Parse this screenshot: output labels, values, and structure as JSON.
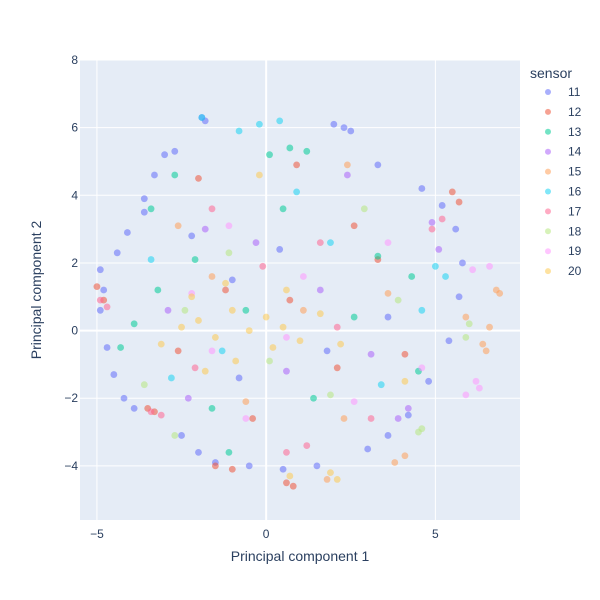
{
  "chart_data": {
    "type": "scatter",
    "xlabel": "Principal component 1",
    "ylabel": "Principal component 2",
    "xlim": [
      -5.5,
      7.5
    ],
    "ylim": [
      -5.6,
      8
    ],
    "x_ticks": [
      -5,
      0,
      5
    ],
    "y_ticks": [
      -4,
      -2,
      0,
      2,
      4,
      6,
      8
    ],
    "x_tick_labels": [
      "−5",
      "0",
      "5"
    ],
    "y_tick_labels": [
      "−4",
      "−2",
      "0",
      "2",
      "4",
      "6",
      "8"
    ],
    "grid": true,
    "legend": {
      "title": "sensor",
      "position": "right"
    },
    "colors": {
      "plot_bg": "#e5ecf6",
      "grid": "#ffffff",
      "text": "#2a3f5f"
    },
    "series": [
      {
        "name": "11",
        "color": "#636efa",
        "points": [
          [
            -4.9,
            1.8
          ],
          [
            -4.8,
            1.2
          ],
          [
            -4.9,
            0.6
          ],
          [
            -4.7,
            -0.5
          ],
          [
            -4.5,
            -1.3
          ],
          [
            -4.2,
            -2.0
          ],
          [
            -3.9,
            -2.3
          ],
          [
            -3.6,
            3.9
          ],
          [
            -3.3,
            4.6
          ],
          [
            -3.0,
            5.2
          ],
          [
            -2.7,
            5.3
          ],
          [
            -1.9,
            6.3
          ],
          [
            -1.8,
            6.2
          ],
          [
            2.0,
            6.1
          ],
          [
            2.3,
            6.0
          ],
          [
            2.5,
            5.9
          ],
          [
            -2.5,
            -3.1
          ],
          [
            -2.0,
            -3.6
          ],
          [
            -1.5,
            -3.9
          ],
          [
            -0.5,
            -4.0
          ],
          [
            0.5,
            -4.1
          ],
          [
            1.5,
            -4.0
          ],
          [
            3.0,
            -3.5
          ],
          [
            3.6,
            -3.1
          ],
          [
            4.2,
            -2.5
          ],
          [
            4.8,
            -1.5
          ],
          [
            5.4,
            -0.3
          ],
          [
            5.7,
            1.0
          ],
          [
            5.8,
            2.0
          ],
          [
            5.6,
            3.0
          ],
          [
            5.2,
            3.7
          ],
          [
            4.6,
            4.2
          ],
          [
            3.3,
            4.9
          ],
          [
            -3.6,
            3.5
          ],
          [
            -4.1,
            2.9
          ],
          [
            -4.4,
            2.3
          ],
          [
            -1.0,
            1.5
          ],
          [
            1.8,
            -0.6
          ],
          [
            -2.2,
            2.8
          ],
          [
            3.6,
            0.4
          ],
          [
            0.4,
            2.4
          ],
          [
            -0.8,
            -1.4
          ]
        ]
      },
      {
        "name": "12",
        "color": "#ef553b",
        "points": [
          [
            -5.0,
            1.3
          ],
          [
            -4.8,
            0.9
          ],
          [
            -3.5,
            -2.3
          ],
          [
            -3.3,
            -2.4
          ],
          [
            -1.5,
            -4.0
          ],
          [
            -1.0,
            -4.1
          ],
          [
            0.8,
            -4.6
          ],
          [
            0.6,
            -4.5
          ],
          [
            5.7,
            3.8
          ],
          [
            5.5,
            4.1
          ],
          [
            -2.0,
            4.5
          ],
          [
            0.9,
            4.9
          ],
          [
            2.1,
            -1.1
          ],
          [
            -1.2,
            1.2
          ],
          [
            3.3,
            2.1
          ],
          [
            -2.6,
            -0.6
          ],
          [
            0.7,
            0.9
          ],
          [
            4.1,
            -0.7
          ],
          [
            -0.4,
            -2.6
          ],
          [
            2.6,
            3.1
          ]
        ]
      },
      {
        "name": "13",
        "color": "#00cc96",
        "points": [
          [
            -4.3,
            -0.5
          ],
          [
            -3.9,
            0.2
          ],
          [
            -3.2,
            1.2
          ],
          [
            -3.4,
            3.6
          ],
          [
            -2.7,
            4.6
          ],
          [
            -1.6,
            -2.3
          ],
          [
            0.7,
            5.4
          ],
          [
            1.2,
            5.3
          ],
          [
            0.1,
            5.2
          ],
          [
            3.3,
            2.2
          ],
          [
            4.5,
            -1.2
          ],
          [
            -0.6,
            0.6
          ],
          [
            1.4,
            -2.0
          ],
          [
            -2.1,
            2.1
          ],
          [
            2.6,
            0.4
          ],
          [
            -1.1,
            -3.6
          ],
          [
            0.5,
            3.6
          ],
          [
            4.3,
            1.6
          ]
        ]
      },
      {
        "name": "14",
        "color": "#ab63fa",
        "points": [
          [
            4.9,
            3.2
          ],
          [
            5.1,
            2.4
          ],
          [
            4.2,
            -2.3
          ],
          [
            3.9,
            -2.6
          ],
          [
            -1.8,
            3.0
          ],
          [
            2.4,
            4.6
          ],
          [
            0.6,
            -1.2
          ],
          [
            -2.9,
            0.6
          ],
          [
            3.1,
            -0.7
          ],
          [
            -0.3,
            2.6
          ],
          [
            1.6,
            1.2
          ],
          [
            -2.3,
            -2.0
          ]
        ]
      },
      {
        "name": "15",
        "color": "#ffa15a",
        "points": [
          [
            6.8,
            1.2
          ],
          [
            6.9,
            1.1
          ],
          [
            6.6,
            0.1
          ],
          [
            6.4,
            -0.4
          ],
          [
            6.5,
            -0.6
          ],
          [
            4.1,
            -3.7
          ],
          [
            3.8,
            -3.9
          ],
          [
            1.8,
            -4.4
          ],
          [
            2.4,
            4.9
          ],
          [
            5.9,
            0.4
          ],
          [
            1.1,
            0.6
          ],
          [
            -1.6,
            1.6
          ],
          [
            3.6,
            1.1
          ],
          [
            -0.6,
            -2.1
          ],
          [
            2.3,
            -2.6
          ],
          [
            -2.6,
            3.1
          ]
        ]
      },
      {
        "name": "16",
        "color": "#19d3f3",
        "points": [
          [
            -0.8,
            5.9
          ],
          [
            -0.2,
            6.1
          ],
          [
            0.4,
            6.2
          ],
          [
            -1.9,
            6.3
          ],
          [
            5.0,
            1.9
          ],
          [
            5.3,
            1.6
          ],
          [
            -2.8,
            -1.4
          ],
          [
            1.9,
            2.6
          ],
          [
            -1.3,
            -0.6
          ],
          [
            3.4,
            -1.6
          ],
          [
            0.9,
            4.1
          ],
          [
            -3.4,
            2.1
          ],
          [
            4.6,
            0.6
          ]
        ]
      },
      {
        "name": "17",
        "color": "#ff6692",
        "points": [
          [
            -4.9,
            0.9
          ],
          [
            -4.7,
            0.7
          ],
          [
            -3.4,
            -2.4
          ],
          [
            -3.1,
            -2.5
          ],
          [
            0.6,
            -3.6
          ],
          [
            1.2,
            -3.4
          ],
          [
            4.9,
            3.0
          ],
          [
            5.2,
            3.3
          ],
          [
            -0.1,
            1.9
          ],
          [
            2.1,
            0.1
          ],
          [
            -2.1,
            -1.1
          ],
          [
            3.1,
            -2.6
          ],
          [
            1.6,
            2.6
          ],
          [
            -1.6,
            3.6
          ]
        ]
      },
      {
        "name": "18",
        "color": "#b6e880",
        "points": [
          [
            4.6,
            -2.9
          ],
          [
            4.5,
            -3.0
          ],
          [
            5.9,
            -0.2
          ],
          [
            6.0,
            0.2
          ],
          [
            -2.7,
            -3.1
          ],
          [
            -3.6,
            -1.6
          ],
          [
            2.9,
            3.6
          ],
          [
            0.1,
            -0.9
          ],
          [
            -1.1,
            2.3
          ],
          [
            3.9,
            0.9
          ],
          [
            1.9,
            -1.9
          ],
          [
            -2.4,
            0.6
          ]
        ]
      },
      {
        "name": "19",
        "color": "#ff97ff",
        "points": [
          [
            6.2,
            -1.5
          ],
          [
            6.3,
            -1.7
          ],
          [
            5.9,
            -1.9
          ],
          [
            6.1,
            1.8
          ],
          [
            6.6,
            1.9
          ],
          [
            -1.6,
            -0.6
          ],
          [
            1.1,
            1.6
          ],
          [
            2.6,
            -2.1
          ],
          [
            -0.6,
            -2.6
          ],
          [
            -2.2,
            1.1
          ],
          [
            3.6,
            2.6
          ],
          [
            0.6,
            -0.2
          ],
          [
            -1.1,
            3.1
          ],
          [
            4.6,
            -1.1
          ]
        ]
      },
      {
        "name": "20",
        "color": "#fecb52",
        "points": [
          [
            -2.5,
            0.1
          ],
          [
            -2.0,
            0.3
          ],
          [
            -1.5,
            -0.2
          ],
          [
            -1.0,
            0.6
          ],
          [
            -0.5,
            0.0
          ],
          [
            0.0,
            0.4
          ],
          [
            0.5,
            0.1
          ],
          [
            -1.8,
            -1.2
          ],
          [
            -0.9,
            -0.9
          ],
          [
            0.2,
            -0.5
          ],
          [
            1.0,
            -0.3
          ],
          [
            -2.2,
            1.0
          ],
          [
            -1.2,
            1.4
          ],
          [
            0.6,
            1.2
          ],
          [
            1.6,
            0.5
          ],
          [
            2.2,
            -0.4
          ],
          [
            0.7,
            -4.3
          ],
          [
            1.9,
            -4.2
          ],
          [
            2.1,
            -4.4
          ],
          [
            -0.2,
            4.6
          ],
          [
            4.1,
            -1.5
          ],
          [
            -3.1,
            -0.4
          ]
        ]
      }
    ]
  }
}
